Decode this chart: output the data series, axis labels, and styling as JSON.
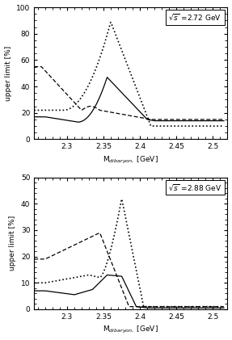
{
  "fig_width": 2.87,
  "fig_height": 4.21,
  "dpi": 100,
  "top_panel": {
    "label": "$\\sqrt{s}$ =2.72 GeV",
    "xlim": [
      2.255,
      2.52
    ],
    "ylim": [
      0,
      100
    ],
    "yticks": [
      0,
      20,
      40,
      60,
      80,
      100
    ],
    "xticks": [
      2.3,
      2.35,
      2.4,
      2.45,
      2.5
    ],
    "xlabel": "M$_{dibaryon,}$ [GeV]",
    "ylabel": "upper limit [%]"
  },
  "bottom_panel": {
    "label": "$\\sqrt{s}$ =2.88 GeV",
    "xlim": [
      2.255,
      2.52
    ],
    "ylim": [
      0,
      50
    ],
    "yticks": [
      0,
      10,
      20,
      30,
      40,
      50
    ],
    "xticks": [
      2.3,
      2.35,
      2.4,
      2.45,
      2.5
    ],
    "xlabel": "M$_{dibaryon,}$ [GeV]",
    "ylabel": "upper limit [%]"
  }
}
